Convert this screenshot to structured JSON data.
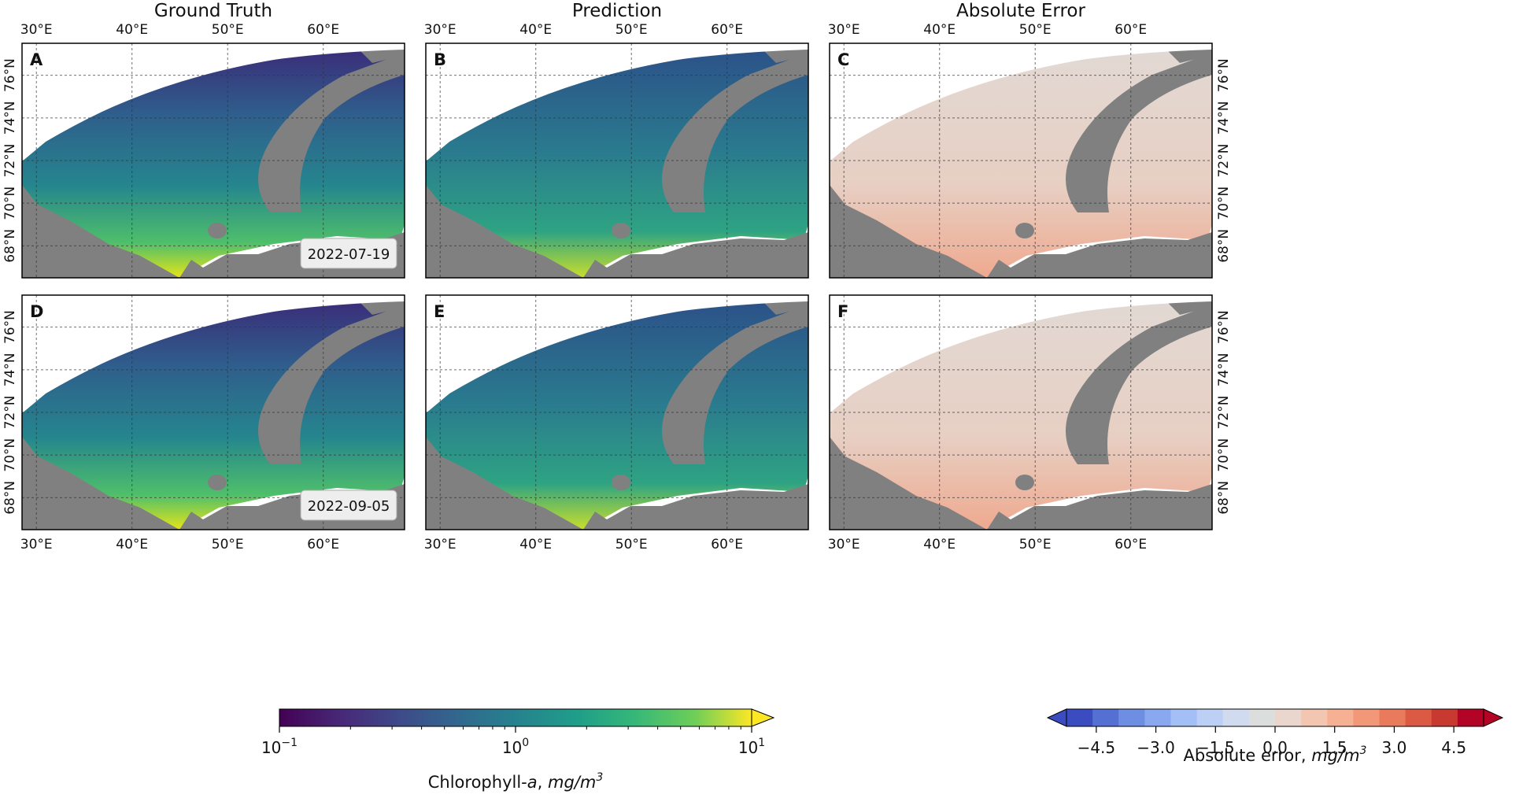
{
  "chart_data": {
    "type": "heatmap",
    "columns": [
      {
        "id": "gt",
        "title": "Ground Truth"
      },
      {
        "id": "pred",
        "title": "Prediction"
      },
      {
        "id": "err",
        "title": "Absolute Error"
      }
    ],
    "panels": [
      {
        "letter": "A",
        "column": "gt",
        "row": 0,
        "date": "2022-07-19"
      },
      {
        "letter": "B",
        "column": "pred",
        "row": 0
      },
      {
        "letter": "C",
        "column": "err",
        "row": 0
      },
      {
        "letter": "D",
        "column": "gt",
        "row": 1,
        "date": "2022-09-05"
      },
      {
        "letter": "E",
        "column": "pred",
        "row": 1
      },
      {
        "letter": "F",
        "column": "err",
        "row": 1
      }
    ],
    "lon_ticks": [
      "30°E",
      "40°E",
      "50°E",
      "60°E"
    ],
    "lat_ticks": [
      "68°N",
      "70°N",
      "72°N",
      "74°N",
      "76°N"
    ],
    "lon_range": [
      28.5,
      68.5
    ],
    "lat_range": [
      66.5,
      77.5
    ],
    "grid": true,
    "colorbars": [
      {
        "id": "chl",
        "label_main": "Chlorophyll-",
        "label_italic": "a",
        "label_sep": ", ",
        "unit_base": "mg/m",
        "unit_exp": "3",
        "scale": "log",
        "range": [
          0.1,
          10
        ],
        "extend": "max",
        "colormap": "viridis",
        "ticks": [
          {
            "base": "10",
            "exp": "−1"
          },
          {
            "base": "10",
            "exp": "0"
          },
          {
            "base": "10",
            "exp": "1"
          }
        ]
      },
      {
        "id": "err",
        "label_main": "Absolute error",
        "label_sep": ", ",
        "unit_base": "mg/m",
        "unit_exp": "3",
        "scale": "linear",
        "range": [
          -5.25,
          5.25
        ],
        "extend": "both",
        "colormap": "coolwarm",
        "ticks": [
          "−4.5",
          "−3.0",
          "−1.5",
          "0.0",
          "1.5",
          "3.0",
          "4.5"
        ]
      }
    ],
    "colors": {
      "land": "#808080",
      "nodata": "#ffffff",
      "grid": "#333333"
    }
  }
}
